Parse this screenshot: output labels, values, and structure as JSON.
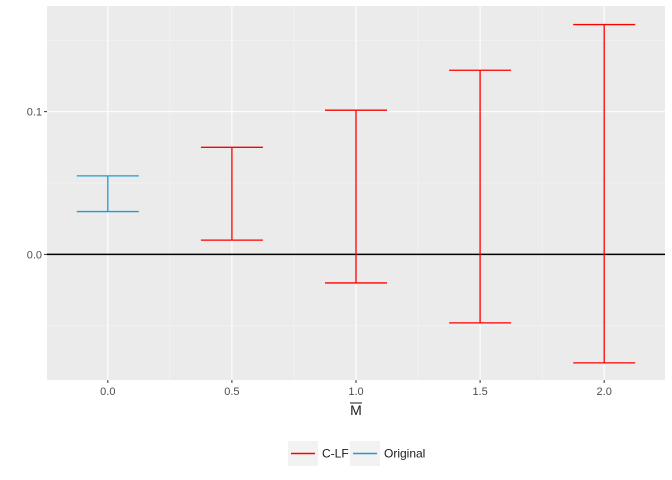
{
  "chart_data": {
    "type": "errorbar",
    "xlabel": "M",
    "xlabel_overline": true,
    "x_ticks": [
      0.0,
      0.5,
      1.0,
      1.5,
      2.0
    ],
    "x_tick_labels": [
      "0.0",
      "0.5",
      "1.0",
      "1.5",
      "2.0"
    ],
    "y_ticks": [
      0.0,
      0.1
    ],
    "y_tick_labels": [
      "0.0",
      "0.1"
    ],
    "xlim": [
      -0.245,
      2.245
    ],
    "ylim": [
      -0.088,
      0.174
    ],
    "hline": 0.0,
    "grid": true,
    "legend_position": "bottom",
    "series": [
      {
        "name": "C-LF",
        "color": "#ff0000",
        "points": [
          {
            "x": 0.5,
            "low": 0.01,
            "high": 0.075
          },
          {
            "x": 1.0,
            "low": -0.02,
            "high": 0.101
          },
          {
            "x": 1.5,
            "low": -0.048,
            "high": 0.129
          },
          {
            "x": 2.0,
            "low": -0.076,
            "high": 0.161
          }
        ]
      },
      {
        "name": "Original",
        "color": "#1f9bd1",
        "points": [
          {
            "x": 0.0,
            "low": 0.03,
            "high": 0.055
          }
        ]
      }
    ]
  }
}
